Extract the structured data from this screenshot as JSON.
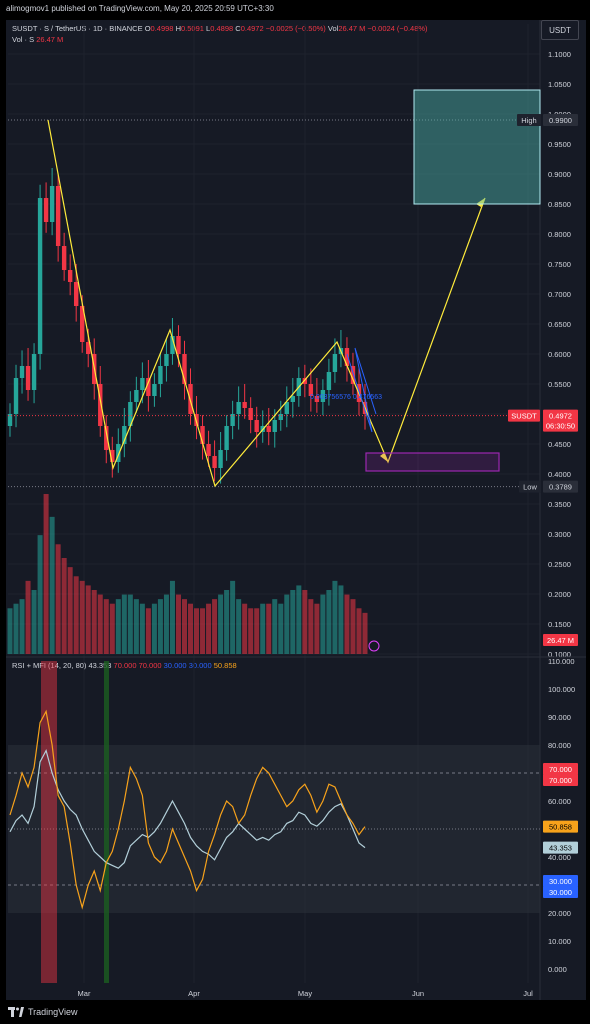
{
  "header": {
    "published": "alimogmov1 published on TradingView.com, May 20, 2025 20:59 UTC+3:30",
    "symbol_line": "SUSDT · S / TetherUS · 1D · BINANCE",
    "ohlc": {
      "o_label": "O",
      "o": "0.4998",
      "h_label": "H",
      "h": "0.5091",
      "l_label": "L",
      "l": "0.4898",
      "c_label": "C",
      "c": "0.4972",
      "change": "−0.0025 (−0.50%)",
      "vol_label": "Vol",
      "vol": "26.47 M",
      "vol_change": "−0.0024 (−0.48%)"
    },
    "volume_line": {
      "label": "Vol · S",
      "value": "26.47 M"
    },
    "currency_button": "USDT"
  },
  "rsi_header": {
    "title": "RSI + MFI (14, 20, 80)",
    "v1": "43.353",
    "v2": "70.000",
    "v3": "70.000",
    "v4": "30.000",
    "v5": "30.000",
    "v6": "50.858"
  },
  "footer": {
    "brand": "TradingView"
  },
  "colors": {
    "up": "#26a69a",
    "down": "#f23645",
    "yellow": "#ffeb3b",
    "box_cyan": "#b2ebf2",
    "purple": "#9c27b0",
    "rsi": "#b2cfd9",
    "mfi": "#f7a21b"
  },
  "chart_data": [
    {
      "type": "candlestick",
      "title": "SUSDT · S / TetherUS · 1D · BINANCE",
      "y_ticks": [
        "1.1000",
        "1.0500",
        "1.0000",
        "0.9500",
        "0.9000",
        "0.8500",
        "0.8000",
        "0.7500",
        "0.7000",
        "0.6500",
        "0.6000",
        "0.5500",
        "0.5000",
        "0.4500",
        "0.4000",
        "0.3500",
        "0.3000",
        "0.2500",
        "0.2000",
        "0.1500",
        "0.1000"
      ],
      "x_ticks": [
        "Mar",
        "Apr",
        "May",
        "Jun",
        "Jul"
      ],
      "ylim": [
        0.1,
        1.1
      ],
      "price_tags": {
        "high": {
          "label": "High",
          "value": "0.9900"
        },
        "low": {
          "label": "Low",
          "value": "0.3789"
        },
        "last": {
          "label": "SUSDT",
          "value": "0.4972",
          "countdown": "06:30:50"
        },
        "volume": "26.47 M"
      },
      "annotation_text": "0.003756576 0.476563",
      "closes": [
        0.5,
        0.56,
        0.58,
        0.54,
        0.6,
        0.86,
        0.82,
        0.88,
        0.78,
        0.74,
        0.72,
        0.68,
        0.62,
        0.6,
        0.55,
        0.48,
        0.44,
        0.42,
        0.45,
        0.48,
        0.52,
        0.54,
        0.56,
        0.53,
        0.55,
        0.58,
        0.6,
        0.63,
        0.6,
        0.55,
        0.5,
        0.48,
        0.45,
        0.43,
        0.41,
        0.44,
        0.48,
        0.5,
        0.52,
        0.51,
        0.49,
        0.47,
        0.48,
        0.47,
        0.49,
        0.5,
        0.52,
        0.53,
        0.56,
        0.55,
        0.53,
        0.52,
        0.54,
        0.57,
        0.6,
        0.61,
        0.58,
        0.55,
        0.52,
        0.5
      ],
      "volumes": [
        0.1,
        0.11,
        0.12,
        0.16,
        0.14,
        0.26,
        0.35,
        0.3,
        0.24,
        0.21,
        0.19,
        0.17,
        0.16,
        0.15,
        0.14,
        0.13,
        0.12,
        0.11,
        0.12,
        0.13,
        0.13,
        0.12,
        0.11,
        0.1,
        0.11,
        0.12,
        0.13,
        0.16,
        0.13,
        0.12,
        0.11,
        0.1,
        0.1,
        0.11,
        0.12,
        0.13,
        0.14,
        0.16,
        0.12,
        0.11,
        0.1,
        0.1,
        0.11,
        0.11,
        0.12,
        0.11,
        0.13,
        0.14,
        0.15,
        0.14,
        0.12,
        0.11,
        0.13,
        0.14,
        0.16,
        0.15,
        0.13,
        0.12,
        0.1,
        0.09
      ]
    },
    {
      "type": "line",
      "title": "RSI + MFI (14, 20, 80)",
      "y_ticks": [
        "110.000",
        "100.000",
        "90.000",
        "80.000",
        "70.000",
        "60.000",
        "50.000",
        "40.000",
        "30.000",
        "20.000",
        "10.000",
        "0.000"
      ],
      "ylim": [
        -5,
        110
      ],
      "series": [
        {
          "name": "RSI",
          "values": [
            49,
            53,
            55,
            52,
            58,
            74,
            78,
            70,
            64,
            60,
            57,
            55,
            50,
            46,
            42,
            40,
            38,
            37,
            36,
            38,
            44,
            46,
            48,
            47,
            49,
            52,
            56,
            60,
            56,
            52,
            47,
            44,
            42,
            41,
            39,
            43,
            47,
            49,
            52,
            50,
            48,
            46,
            47,
            46,
            48,
            49,
            52,
            53,
            56,
            55,
            52,
            51,
            53,
            56,
            58,
            59,
            55,
            50,
            45,
            43.353
          ]
        },
        {
          "name": "MFI",
          "values": [
            55,
            62,
            70,
            65,
            72,
            88,
            92,
            80,
            62,
            58,
            45,
            30,
            22,
            30,
            35,
            28,
            38,
            42,
            50,
            60,
            72,
            68,
            62,
            45,
            40,
            38,
            42,
            50,
            45,
            40,
            35,
            28,
            32,
            42,
            48,
            55,
            60,
            58,
            52,
            55,
            62,
            68,
            72,
            70,
            66,
            62,
            58,
            60,
            64,
            66,
            62,
            56,
            60,
            66,
            65,
            60,
            55,
            52,
            48,
            50.858
          ]
        }
      ],
      "bands": {
        "upper": 80,
        "lower": 20,
        "overbought": 70,
        "oversold": 30,
        "mid": 50
      }
    }
  ]
}
